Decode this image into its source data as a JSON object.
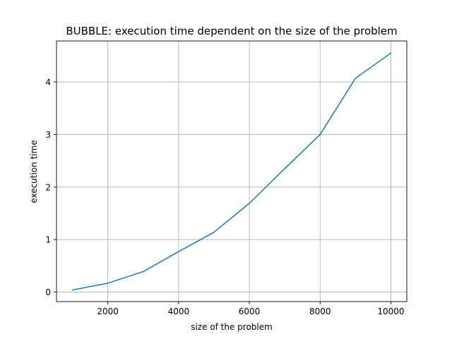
{
  "chart_data": {
    "type": "line",
    "title": "BUBBLE: execution time dependent on the size of the problem",
    "xlabel": "size of the problem",
    "ylabel": "execution time",
    "xlim": [
      550,
      10450
    ],
    "ylim": [
      -0.18,
      4.78
    ],
    "xticks": [
      2000,
      4000,
      6000,
      8000,
      10000
    ],
    "xtick_labels": [
      "2000",
      "4000",
      "6000",
      "8000",
      "10000"
    ],
    "yticks": [
      0,
      1,
      2,
      3,
      4
    ],
    "ytick_labels": [
      "0",
      "1",
      "2",
      "3",
      "4"
    ],
    "grid": true,
    "series": [
      {
        "color": "#1f77b4",
        "x": [
          1000,
          2000,
          3000,
          4000,
          5000,
          6000,
          7000,
          8000,
          9000,
          10000
        ],
        "y": [
          0.04,
          0.17,
          0.39,
          0.77,
          1.14,
          1.69,
          2.35,
          3.0,
          4.07,
          4.55
        ]
      }
    ]
  },
  "colors": {
    "line": "#1f77b4",
    "grid": "#b0b0b0",
    "axes": "#000000"
  }
}
